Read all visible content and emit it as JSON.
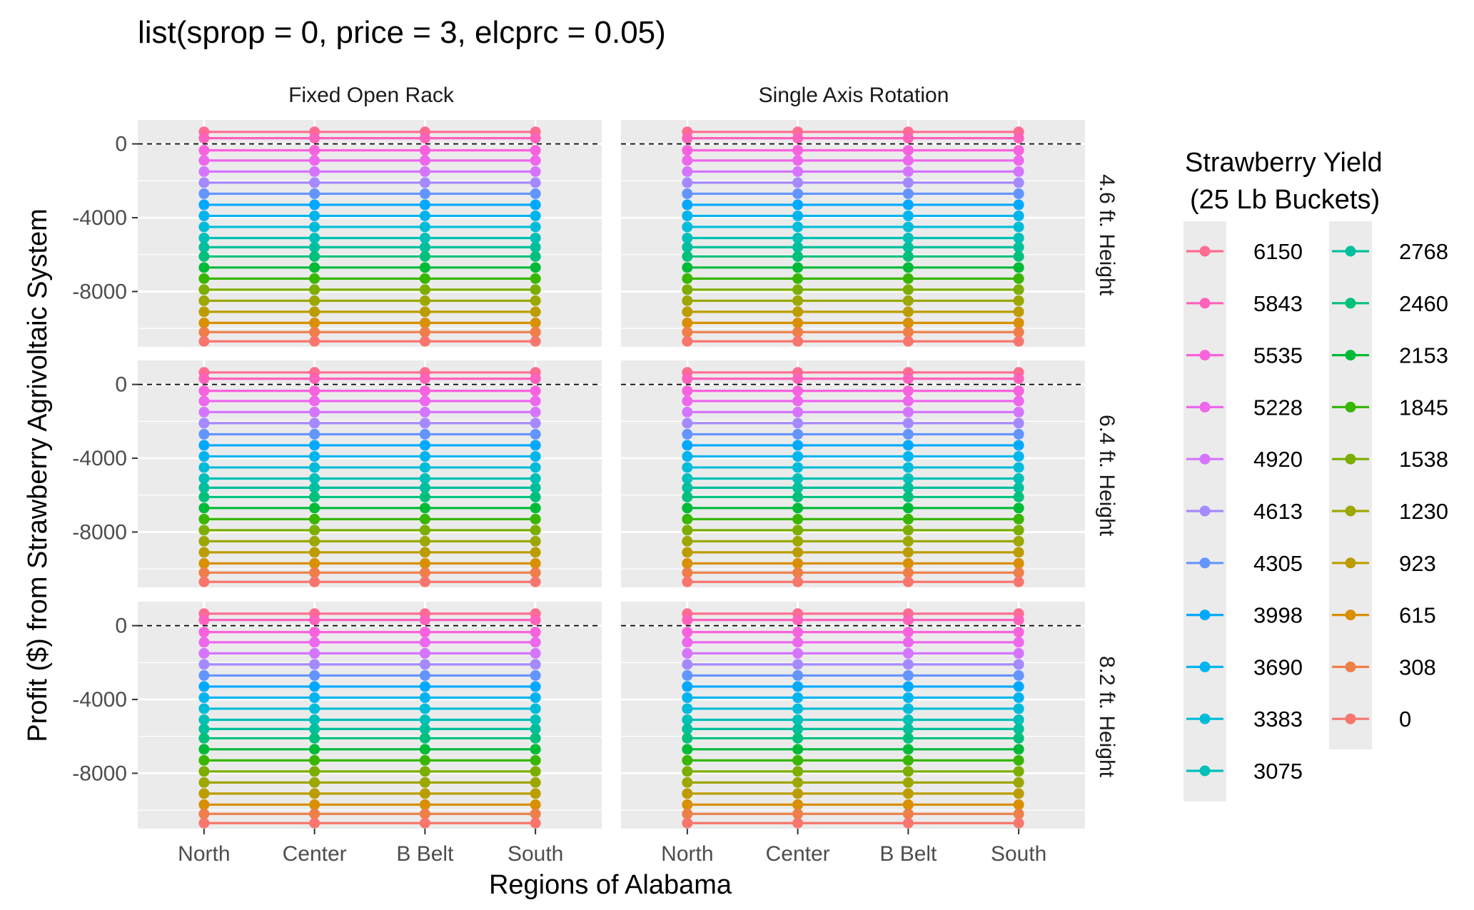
{
  "chart_data": {
    "type": "line",
    "title": "list(sprop = 0, price = 3, elcprc = 0.05)",
    "xlabel": "Regions of Alabama",
    "ylabel": "Profit ($) from Strawberry Agrivoltaic System",
    "categories": [
      "North",
      "Center",
      "B Belt",
      "South"
    ],
    "facet_columns": [
      "Fixed Open Rack",
      "Single Axis Rotation"
    ],
    "facet_rows": [
      "4.6 ft. Height",
      "6.4 ft. Height",
      "8.2 ft. Height"
    ],
    "ylim": [
      -11000,
      1300
    ],
    "yticks": [
      0,
      -4000,
      -8000
    ],
    "ytick_labels": [
      "0",
      "-4000",
      "-8000"
    ],
    "reference_line": {
      "y": 0,
      "style": "dashed"
    },
    "grid": true,
    "legend": {
      "title_line1": "Strawberry Yield",
      "title_line2": "(25 Lb Buckets)",
      "placement": "right",
      "columns": [
        [
          "6150",
          "5843",
          "5535",
          "5228",
          "4920",
          "4613",
          "4305",
          "3998",
          "3690",
          "3383",
          "3075"
        ],
        [
          "2768",
          "2460",
          "2153",
          "1845",
          "1538",
          "1230",
          "923",
          "615",
          "308",
          "0"
        ]
      ]
    },
    "series": [
      {
        "name": "6150",
        "color": "#FF6C91",
        "values": [
          650,
          650,
          650,
          650
        ]
      },
      {
        "name": "5843",
        "color": "#FF62BC",
        "values": [
          310,
          310,
          310,
          310
        ]
      },
      {
        "name": "5535",
        "color": "#F962DD",
        "values": [
          -350,
          -350,
          -350,
          -350
        ]
      },
      {
        "name": "5228",
        "color": "#ED68ED",
        "values": [
          -900,
          -900,
          -900,
          -900
        ]
      },
      {
        "name": "4920",
        "color": "#D575FE",
        "values": [
          -1500,
          -1500,
          -1500,
          -1500
        ]
      },
      {
        "name": "4613",
        "color": "#A58AFF",
        "values": [
          -2100,
          -2100,
          -2100,
          -2100
        ]
      },
      {
        "name": "4305",
        "color": "#6495FF",
        "values": [
          -2700,
          -2700,
          -2700,
          -2700
        ]
      },
      {
        "name": "3998",
        "color": "#00A9FF",
        "values": [
          -3300,
          -3300,
          -3300,
          -3300
        ]
      },
      {
        "name": "3690",
        "color": "#00B4EF",
        "values": [
          -3900,
          -3900,
          -3900,
          -3900
        ]
      },
      {
        "name": "3383",
        "color": "#00BCD8",
        "values": [
          -4500,
          -4500,
          -4500,
          -4500
        ]
      },
      {
        "name": "3075",
        "color": "#00C0B8",
        "values": [
          -5100,
          -5100,
          -5100,
          -5100
        ]
      },
      {
        "name": "2768",
        "color": "#00BF9C",
        "values": [
          -5600,
          -5600,
          -5600,
          -5600
        ]
      },
      {
        "name": "2460",
        "color": "#00C07B",
        "values": [
          -6100,
          -6100,
          -6100,
          -6100
        ]
      },
      {
        "name": "2153",
        "color": "#00BA38",
        "values": [
          -6700,
          -6700,
          -6700,
          -6700
        ]
      },
      {
        "name": "1845",
        "color": "#39B600",
        "values": [
          -7300,
          -7300,
          -7300,
          -7300
        ]
      },
      {
        "name": "1538",
        "color": "#7CAE00",
        "values": [
          -7900,
          -7900,
          -7900,
          -7900
        ]
      },
      {
        "name": "1230",
        "color": "#9CA700",
        "values": [
          -8500,
          -8500,
          -8500,
          -8500
        ]
      },
      {
        "name": "923",
        "color": "#BB9D00",
        "values": [
          -9100,
          -9100,
          -9100,
          -9100
        ]
      },
      {
        "name": "615",
        "color": "#D89000",
        "values": [
          -9700,
          -9700,
          -9700,
          -9700
        ]
      },
      {
        "name": "308",
        "color": "#EF7F49",
        "values": [
          -10200,
          -10200,
          -10200,
          -10200
        ]
      },
      {
        "name": "0",
        "color": "#F8766D",
        "values": [
          -10700,
          -10700,
          -10700,
          -10700
        ]
      }
    ]
  }
}
